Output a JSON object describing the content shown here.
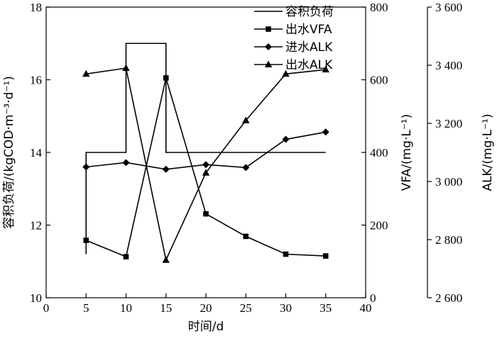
{
  "chart_data": {
    "type": "line",
    "xlabel": "时间/d",
    "xlim": [
      0,
      40
    ],
    "xticks": [
      0,
      5,
      10,
      15,
      20,
      25,
      30,
      35,
      40
    ],
    "axes": {
      "left": {
        "label": "容积负荷/(kgCOD·m⁻³·d⁻¹)",
        "lim": [
          10,
          18
        ],
        "ticks": [
          10,
          12,
          14,
          16,
          18
        ]
      },
      "right1": {
        "label": "VFA/(mg·L⁻¹)",
        "lim": [
          0,
          800
        ],
        "ticks": [
          0,
          200,
          400,
          600,
          800
        ]
      },
      "right2": {
        "label": "ALK/(mg·L⁻¹)",
        "lim": [
          2600,
          3600
        ],
        "ticks": [
          2600,
          2800,
          3000,
          3200,
          3400,
          3600
        ],
        "tick_labels": [
          "2 600",
          "2 800",
          "3 000",
          "3 200",
          "3 400",
          "3 600"
        ]
      }
    },
    "legend_position": "top-right",
    "series": [
      {
        "name": "容积负荷",
        "axis": "left",
        "marker": "none",
        "style": "step",
        "points": [
          [
            5,
            11.2
          ],
          [
            5,
            14
          ],
          [
            10,
            14
          ],
          [
            10,
            17
          ],
          [
            15,
            17
          ],
          [
            15,
            14
          ],
          [
            35,
            14
          ]
        ]
      },
      {
        "name": "出水VFA",
        "axis": "right1",
        "marker": "square",
        "points": [
          [
            5,
            158
          ],
          [
            10,
            113
          ],
          [
            15,
            605
          ],
          [
            20,
            231
          ],
          [
            25,
            169
          ],
          [
            30,
            120
          ],
          [
            35,
            115
          ]
        ]
      },
      {
        "name": "进水ALK",
        "axis": "right2",
        "marker": "diamond",
        "points": [
          [
            5,
            3050
          ],
          [
            10,
            3065
          ],
          [
            15,
            3042
          ],
          [
            20,
            3058
          ],
          [
            25,
            3048
          ],
          [
            30,
            3145
          ],
          [
            35,
            3170
          ]
        ]
      },
      {
        "name": "出水ALK",
        "axis": "right2",
        "marker": "triangle",
        "points": [
          [
            5,
            3370
          ],
          [
            10,
            3390
          ],
          [
            15,
            2730
          ],
          [
            20,
            3030
          ],
          [
            25,
            3210
          ],
          [
            30,
            3370
          ],
          [
            35,
            3385
          ]
        ]
      }
    ]
  }
}
